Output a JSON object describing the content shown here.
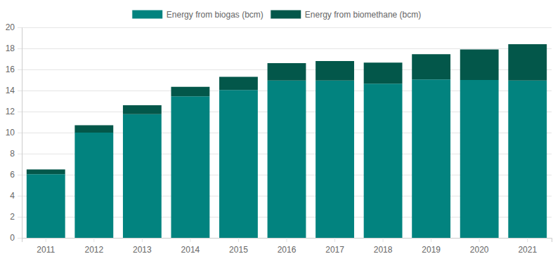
{
  "chart_data": {
    "type": "bar",
    "stacked": true,
    "legend": "top",
    "grid": true,
    "categories": [
      "2011",
      "2012",
      "2013",
      "2014",
      "2015",
      "2016",
      "2017",
      "2018",
      "2019",
      "2020",
      "2021"
    ],
    "series": [
      {
        "name": "Energy from biogas (bcm)",
        "color": "#02837f",
        "values": [
          6.05,
          10.0,
          11.75,
          13.45,
          14.05,
          14.95,
          14.95,
          14.65,
          15.05,
          15.0,
          14.95
        ]
      },
      {
        "name": "Energy from biomethane (bcm)",
        "color": "#03574a",
        "values": [
          0.45,
          0.7,
          0.85,
          0.9,
          1.25,
          1.65,
          1.85,
          2.0,
          2.4,
          2.9,
          3.45
        ]
      }
    ],
    "ylim": [
      0,
      20
    ],
    "yticks": [
      0,
      2,
      4,
      6,
      8,
      10,
      12,
      14,
      16,
      18,
      20
    ]
  }
}
